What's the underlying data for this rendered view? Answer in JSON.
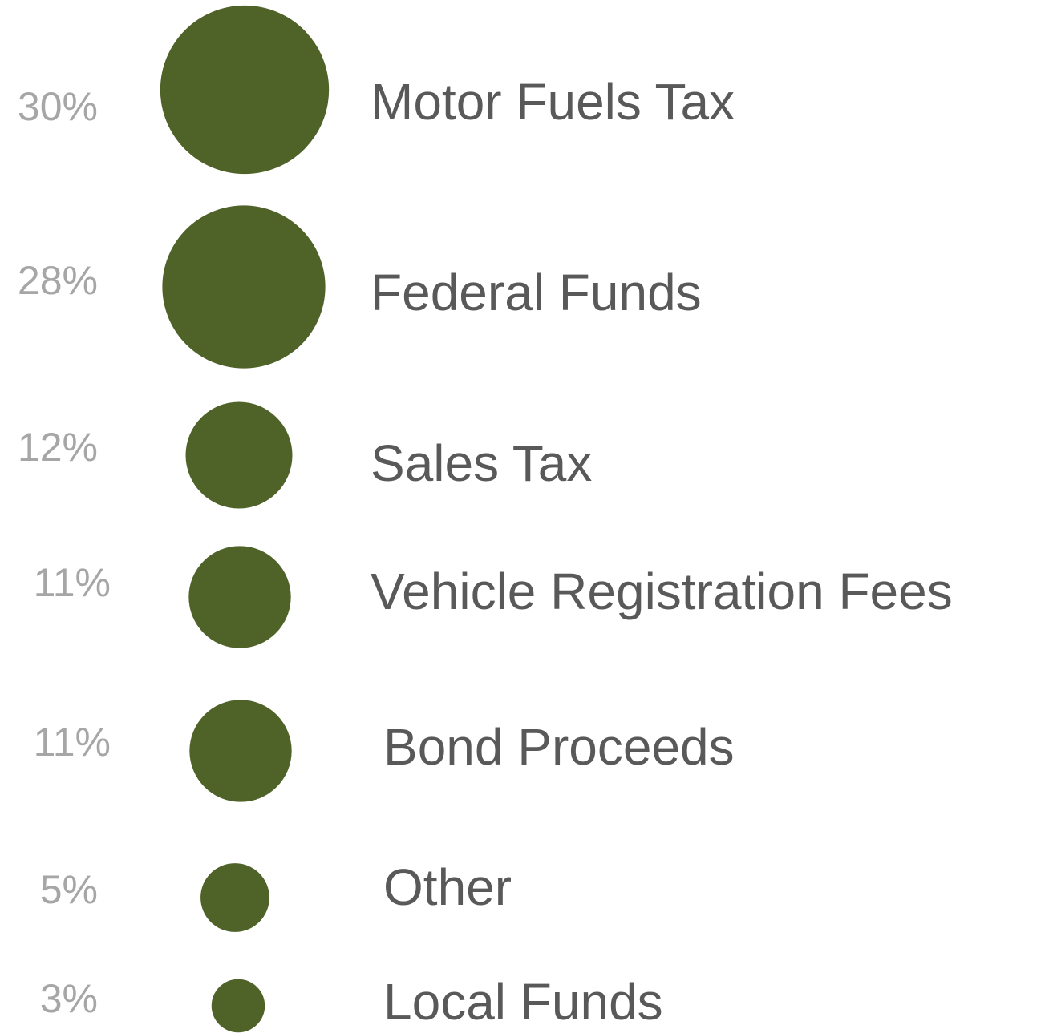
{
  "chart_data": {
    "type": "bubble",
    "categories": [
      "Motor Fuels Tax",
      "Federal Funds",
      "Sales Tax",
      "Vehicle Registration Fees",
      "Bond Proceeds",
      "Other",
      "Local Funds"
    ],
    "values": [
      30,
      28,
      12,
      11,
      11,
      5,
      3
    ],
    "value_labels": [
      "30%",
      "28%",
      "12%",
      "11%",
      "11%",
      "5%",
      "3%"
    ],
    "color": "#4f6228"
  }
}
